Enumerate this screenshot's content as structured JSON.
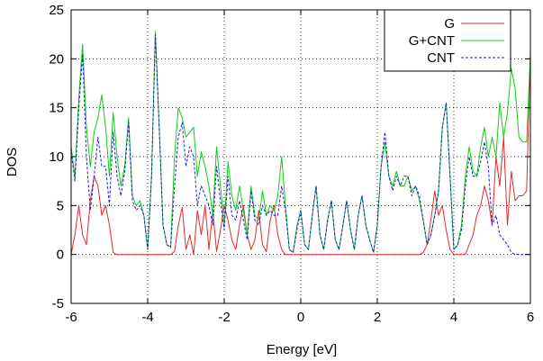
{
  "chart_data": {
    "type": "line",
    "title": "",
    "xlabel": "Energy [eV]",
    "ylabel": "DOS",
    "xlim": [
      -6,
      6
    ],
    "ylim": [
      -5,
      25
    ],
    "xticks": [
      -6,
      -4,
      -2,
      0,
      2,
      4,
      6
    ],
    "yticks": [
      -5,
      0,
      5,
      10,
      15,
      20,
      25
    ],
    "xtick_labels": [
      "-6",
      "-4",
      "-2",
      "0",
      "2",
      "4",
      "6"
    ],
    "ytick_labels": [
      "-5",
      "0",
      "5",
      "10",
      "15",
      "20",
      "25"
    ],
    "grid": true,
    "legend_position": "top-right",
    "series": [
      {
        "name": "G",
        "color": "#e8262c",
        "style": "solid",
        "x": [
          -6.0,
          -5.9,
          -5.8,
          -5.7,
          -5.6,
          -5.5,
          -5.4,
          -5.3,
          -5.2,
          -5.1,
          -5.0,
          -4.9,
          -4.8,
          -4.7,
          -4.6,
          -4.5,
          -4.4,
          -4.3,
          -4.2,
          -4.1,
          -4.0,
          -3.9,
          -3.8,
          -3.7,
          -3.6,
          -3.5,
          -3.4,
          -3.3,
          -3.2,
          -3.1,
          -3.0,
          -2.9,
          -2.8,
          -2.7,
          -2.6,
          -2.5,
          -2.4,
          -2.3,
          -2.2,
          -2.1,
          -2.0,
          -1.9,
          -1.8,
          -1.7,
          -1.6,
          -1.5,
          -1.4,
          -1.3,
          -1.2,
          -1.1,
          -1.0,
          -0.9,
          -0.8,
          -0.7,
          -0.6,
          -0.5,
          -0.4,
          -0.3,
          -0.2,
          -0.1,
          0.0,
          0.5,
          1.0,
          1.5,
          2.0,
          2.5,
          2.8,
          3.0,
          3.1,
          3.2,
          3.3,
          3.4,
          3.5,
          3.6,
          3.7,
          3.8,
          3.9,
          4.0,
          4.1,
          4.2,
          4.3,
          4.4,
          4.5,
          4.6,
          4.7,
          4.8,
          4.9,
          5.0,
          5.1,
          5.2,
          5.3,
          5.4,
          5.5,
          5.6,
          5.7,
          5.8,
          5.9,
          6.0
        ],
        "y": [
          0.0,
          2.0,
          5.0,
          2.0,
          1.0,
          5.5,
          8.0,
          7.0,
          4.0,
          5.0,
          3.0,
          0.2,
          0.0,
          0.0,
          0.0,
          0.0,
          0.0,
          0.0,
          0.0,
          0.0,
          0.0,
          0.0,
          0.0,
          0.0,
          0.0,
          0.0,
          0.0,
          0.3,
          3.0,
          4.8,
          0.5,
          2.0,
          0.0,
          4.5,
          2.0,
          5.0,
          0.5,
          4.5,
          0.3,
          2.5,
          5.0,
          3.5,
          1.5,
          0.5,
          3.0,
          5.0,
          2.0,
          0.5,
          1.5,
          4.5,
          1.0,
          0.3,
          3.5,
          5.0,
          2.0,
          0.5,
          0.0,
          0.0,
          0.0,
          0.0,
          0.0,
          0.0,
          0.0,
          0.0,
          0.0,
          0.0,
          0.0,
          0.0,
          0.0,
          0.2,
          1.0,
          3.5,
          6.5,
          4.0,
          5.0,
          2.5,
          0.5,
          0.0,
          0.0,
          0.0,
          0.0,
          1.0,
          2.0,
          4.0,
          5.0,
          7.0,
          5.5,
          3.0,
          10.0,
          7.0,
          12.0,
          3.0,
          8.5,
          5.5,
          6.0,
          6.0,
          6.5,
          20.5
        ]
      },
      {
        "name": "G+CNT",
        "color": "#14cc14",
        "style": "solid",
        "x": [
          -6.0,
          -5.9,
          -5.8,
          -5.7,
          -5.6,
          -5.5,
          -5.4,
          -5.3,
          -5.2,
          -5.1,
          -5.0,
          -4.9,
          -4.8,
          -4.7,
          -4.6,
          -4.5,
          -4.4,
          -4.3,
          -4.2,
          -4.1,
          -4.0,
          -3.9,
          -3.8,
          -3.7,
          -3.6,
          -3.5,
          -3.4,
          -3.3,
          -3.2,
          -3.1,
          -3.0,
          -2.9,
          -2.8,
          -2.7,
          -2.6,
          -2.5,
          -2.4,
          -2.3,
          -2.2,
          -2.1,
          -2.0,
          -1.9,
          -1.8,
          -1.7,
          -1.6,
          -1.5,
          -1.4,
          -1.3,
          -1.2,
          -1.1,
          -1.0,
          -0.9,
          -0.8,
          -0.7,
          -0.6,
          -0.5,
          -0.4,
          -0.3,
          -0.2,
          -0.1,
          0.0,
          0.1,
          0.2,
          0.3,
          0.4,
          0.5,
          0.6,
          0.7,
          0.8,
          0.9,
          1.0,
          1.1,
          1.2,
          1.3,
          1.4,
          1.5,
          1.6,
          1.7,
          1.8,
          1.9,
          2.0,
          2.1,
          2.2,
          2.3,
          2.4,
          2.5,
          2.6,
          2.7,
          2.8,
          2.9,
          3.0,
          3.1,
          3.2,
          3.3,
          3.4,
          3.5,
          3.6,
          3.7,
          3.8,
          3.9,
          4.0,
          4.1,
          4.2,
          4.3,
          4.4,
          4.5,
          4.6,
          4.7,
          4.8,
          4.9,
          5.0,
          5.1,
          5.2,
          5.3,
          5.4,
          5.5,
          5.6,
          5.7,
          5.8,
          5.9,
          6.0
        ],
        "y": [
          11.0,
          8.0,
          16.0,
          21.5,
          13.0,
          9.0,
          12.5,
          14.0,
          16.3,
          13.0,
          8.0,
          14.5,
          10.0,
          7.0,
          9.0,
          14.0,
          6.0,
          5.0,
          5.5,
          4.0,
          0.5,
          8.0,
          22.8,
          13.0,
          3.0,
          1.0,
          0.8,
          10.0,
          15.0,
          14.0,
          12.0,
          12.5,
          13.0,
          8.0,
          10.5,
          9.0,
          7.0,
          4.0,
          11.0,
          7.0,
          3.0,
          9.5,
          6.0,
          4.5,
          7.0,
          4.5,
          2.0,
          7.0,
          4.0,
          3.5,
          6.5,
          4.0,
          5.0,
          4.5,
          6.0,
          10.0,
          5.0,
          0.5,
          0.2,
          3.0,
          4.5,
          1.0,
          0.5,
          4.0,
          7.0,
          2.0,
          0.5,
          3.5,
          5.5,
          1.5,
          0.5,
          3.0,
          5.5,
          2.5,
          0.5,
          4.0,
          6.0,
          3.0,
          1.5,
          0.2,
          3.0,
          9.0,
          11.5,
          8.0,
          7.0,
          8.5,
          7.0,
          7.0,
          8.0,
          6.5,
          7.0,
          5.5,
          3.5,
          1.0,
          2.0,
          4.0,
          6.5,
          13.0,
          15.5,
          8.0,
          0.5,
          1.0,
          3.0,
          8.0,
          11.0,
          8.5,
          8.0,
          11.0,
          13.0,
          10.0,
          12.0,
          10.0,
          15.5,
          12.0,
          14.5,
          19.0,
          17.0,
          12.0,
          11.5,
          11.5,
          20.5
        ]
      },
      {
        "name": "CNT",
        "color": "#1c1cd6",
        "style": "dashed",
        "x": [
          -6.0,
          -5.9,
          -5.8,
          -5.7,
          -5.6,
          -5.5,
          -5.4,
          -5.3,
          -5.2,
          -5.1,
          -5.0,
          -4.9,
          -4.8,
          -4.7,
          -4.6,
          -4.5,
          -4.4,
          -4.3,
          -4.2,
          -4.1,
          -4.0,
          -3.9,
          -3.8,
          -3.7,
          -3.6,
          -3.5,
          -3.4,
          -3.3,
          -3.2,
          -3.1,
          -3.0,
          -2.9,
          -2.8,
          -2.7,
          -2.6,
          -2.5,
          -2.4,
          -2.3,
          -2.2,
          -2.1,
          -2.0,
          -1.9,
          -1.8,
          -1.7,
          -1.6,
          -1.5,
          -1.4,
          -1.3,
          -1.2,
          -1.1,
          -1.0,
          -0.9,
          -0.8,
          -0.7,
          -0.6,
          -0.5,
          -0.4,
          -0.3,
          -0.2,
          -0.1,
          0.0,
          0.1,
          0.2,
          0.3,
          0.4,
          0.5,
          0.6,
          0.7,
          0.8,
          0.9,
          1.0,
          1.1,
          1.2,
          1.3,
          1.4,
          1.5,
          1.6,
          1.7,
          1.8,
          1.9,
          2.0,
          2.1,
          2.2,
          2.3,
          2.4,
          2.5,
          2.6,
          2.7,
          2.8,
          2.9,
          3.0,
          3.1,
          3.2,
          3.3,
          3.4,
          3.5,
          3.6,
          3.7,
          3.8,
          3.9,
          4.0,
          4.1,
          4.2,
          4.3,
          4.4,
          4.5,
          4.6,
          4.7,
          4.8,
          4.9,
          5.0,
          5.1,
          5.2,
          5.3,
          5.4,
          5.5,
          5.6,
          5.7,
          5.8,
          5.9,
          6.0
        ],
        "y": [
          10.5,
          7.5,
          15.0,
          20.5,
          10.0,
          4.5,
          8.0,
          12.0,
          9.0,
          9.0,
          5.0,
          12.5,
          8.0,
          6.0,
          8.5,
          13.5,
          5.5,
          4.5,
          5.0,
          4.0,
          0.5,
          8.0,
          22.5,
          13.0,
          3.0,
          1.0,
          0.7,
          7.0,
          12.0,
          13.5,
          9.0,
          11.0,
          10.0,
          5.0,
          7.0,
          6.0,
          5.0,
          3.0,
          9.0,
          5.5,
          2.5,
          8.0,
          4.0,
          3.5,
          5.5,
          3.5,
          1.5,
          6.5,
          3.5,
          3.0,
          5.0,
          4.0,
          4.5,
          4.0,
          4.0,
          7.0,
          4.5,
          0.5,
          0.2,
          2.5,
          4.5,
          1.0,
          0.5,
          4.0,
          7.0,
          2.0,
          0.5,
          3.5,
          5.5,
          1.5,
          0.5,
          3.0,
          5.5,
          2.5,
          0.5,
          4.0,
          6.0,
          3.0,
          1.5,
          0.2,
          3.0,
          9.0,
          12.5,
          8.0,
          6.5,
          8.0,
          7.0,
          8.0,
          8.0,
          6.0,
          7.0,
          6.0,
          3.5,
          1.0,
          2.0,
          4.0,
          6.5,
          13.0,
          15.5,
          8.0,
          0.5,
          1.0,
          2.5,
          7.0,
          10.0,
          8.0,
          8.0,
          9.5,
          11.5,
          9.0,
          3.0,
          4.0,
          2.0,
          1.5,
          1.0,
          0.2,
          0.0,
          0.0,
          0.0,
          0.0,
          0.0
        ]
      }
    ]
  }
}
